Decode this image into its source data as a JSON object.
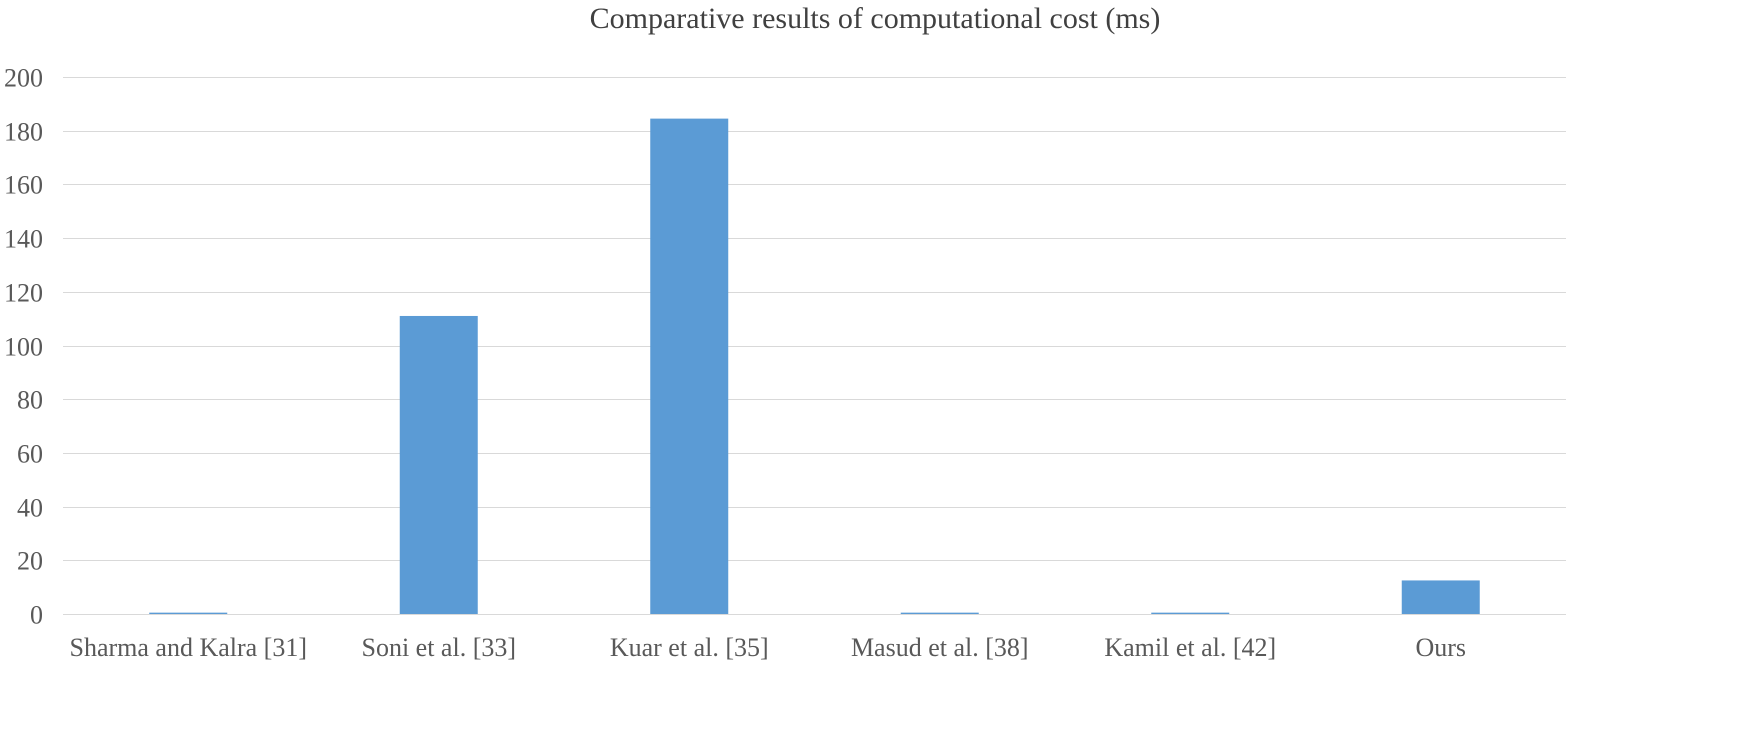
{
  "chart_data": {
    "type": "bar",
    "title": "Comparative results of  computational cost (ms)",
    "categories": [
      "Sharma and Kalra [31]",
      "Soni et al. [33]",
      "Kuar et al. [35]",
      "Masud et al. [38]",
      "Kamil et al. [42]",
      "Ours"
    ],
    "values": [
      0.5,
      111,
      184.5,
      0.5,
      0.5,
      12.5
    ],
    "xlabel": "",
    "ylabel": "",
    "ylim": [
      0,
      200
    ],
    "yticks": [
      0,
      20,
      40,
      60,
      80,
      100,
      120,
      140,
      160,
      180,
      200
    ],
    "grid": true,
    "legend": "none",
    "bar_color": "#5b9bd5"
  }
}
